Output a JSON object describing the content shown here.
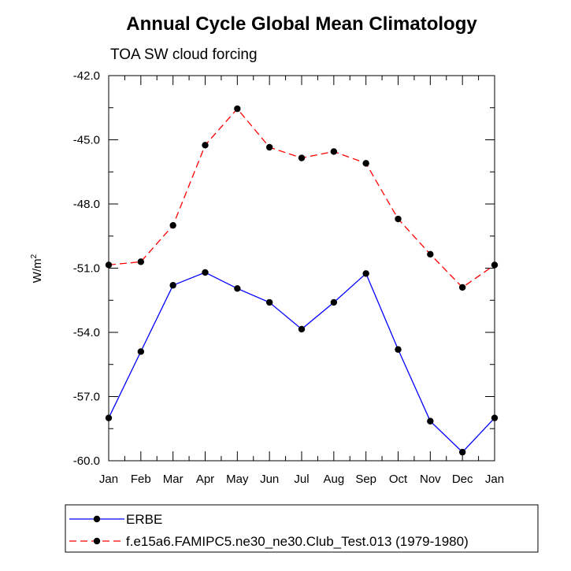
{
  "chart_data": {
    "type": "line",
    "title": "Annual Cycle Global Mean Climatology",
    "subtitle": "TOA SW cloud forcing",
    "ylabel": "W/m",
    "ylabel_superscript": "2",
    "xlabel": "",
    "categories": [
      "Jan",
      "Feb",
      "Mar",
      "Apr",
      "May",
      "Jun",
      "Jul",
      "Aug",
      "Sep",
      "Oct",
      "Nov",
      "Dec",
      "Jan"
    ],
    "ylim": [
      -60.0,
      -42.0
    ],
    "yticks": [
      "-42.0",
      "-45.0",
      "-48.0",
      "-51.0",
      "-54.0",
      "-57.0",
      "-60.0"
    ],
    "grid": false,
    "legend_position": "bottom",
    "series": [
      {
        "name": "ERBE",
        "color": "#0000ff",
        "dash": "solid",
        "values": [
          -58.0,
          -54.9,
          -51.8,
          -51.2,
          -51.95,
          -52.6,
          -53.85,
          -52.6,
          -51.25,
          -54.8,
          -58.15,
          -59.6,
          -58.0
        ]
      },
      {
        "name": "f.e15a6.FAMIPC5.ne30_ne30.Club_Test.013 (1979-1980)",
        "color": "#ff0000",
        "dash": "dashed",
        "values": [
          -50.85,
          -50.7,
          -49.0,
          -45.25,
          -43.55,
          -45.35,
          -45.85,
          -45.55,
          -46.1,
          -48.7,
          -50.35,
          -51.9,
          -50.85
        ]
      }
    ]
  }
}
